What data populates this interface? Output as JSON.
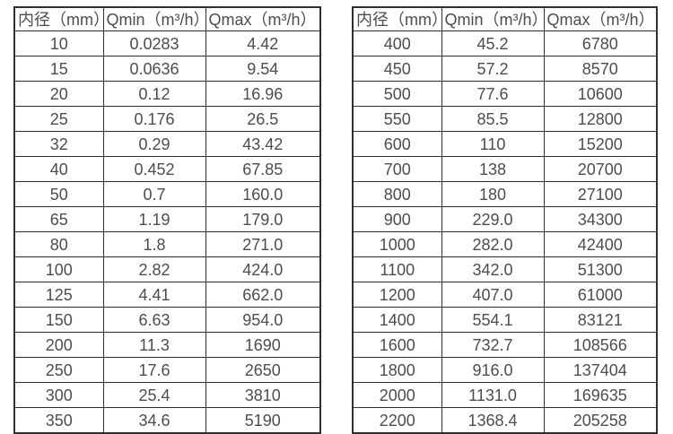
{
  "page": {
    "background": "#ffffff",
    "border_color": "#2f2f2f",
    "text_color": "#4d4d4d"
  },
  "chart_data": [
    {
      "type": "table",
      "name": "flow-rate-table-small-diameters",
      "columns": [
        "内径（mm）",
        "Qmin（m³/h）",
        "Qmax（m³/h）"
      ],
      "rows": [
        [
          "10",
          "0.0283",
          "4.42"
        ],
        [
          "15",
          "0.0636",
          "9.54"
        ],
        [
          "20",
          "0.12",
          "16.96"
        ],
        [
          "25",
          "0.176",
          "26.5"
        ],
        [
          "32",
          "0.29",
          "43.42"
        ],
        [
          "40",
          "0.452",
          "67.85"
        ],
        [
          "50",
          "0.7",
          "160.0"
        ],
        [
          "65",
          "1.19",
          "179.0"
        ],
        [
          "80",
          "1.8",
          "271.0"
        ],
        [
          "100",
          "2.82",
          "424.0"
        ],
        [
          "125",
          "4.41",
          "662.0"
        ],
        [
          "150",
          "6.63",
          "954.0"
        ],
        [
          "200",
          "11.3",
          "1690"
        ],
        [
          "250",
          "17.6",
          "2650"
        ],
        [
          "300",
          "25.4",
          "3810"
        ],
        [
          "350",
          "34.6",
          "5190"
        ]
      ]
    },
    {
      "type": "table",
      "name": "flow-rate-table-large-diameters",
      "columns": [
        "内径（mm）",
        "Qmin（m³/h）",
        "Qmax（m³/h）"
      ],
      "rows": [
        [
          "400",
          "45.2",
          "6780"
        ],
        [
          "450",
          "57.2",
          "8570"
        ],
        [
          "500",
          "77.6",
          "10600"
        ],
        [
          "550",
          "85.5",
          "12800"
        ],
        [
          "600",
          "110",
          "15200"
        ],
        [
          "700",
          "138",
          "20700"
        ],
        [
          "800",
          "180",
          "27100"
        ],
        [
          "900",
          "229.0",
          "34300"
        ],
        [
          "1000",
          "282.0",
          "42400"
        ],
        [
          "1100",
          "342.0",
          "51300"
        ],
        [
          "1200",
          "407.0",
          "61000"
        ],
        [
          "1400",
          "554.1",
          "83121"
        ],
        [
          "1600",
          "732.7",
          "108566"
        ],
        [
          "1800",
          "916.0",
          "137404"
        ],
        [
          "2000",
          "1131.0",
          "169635"
        ],
        [
          "2200",
          "1368.4",
          "205258"
        ]
      ]
    }
  ]
}
